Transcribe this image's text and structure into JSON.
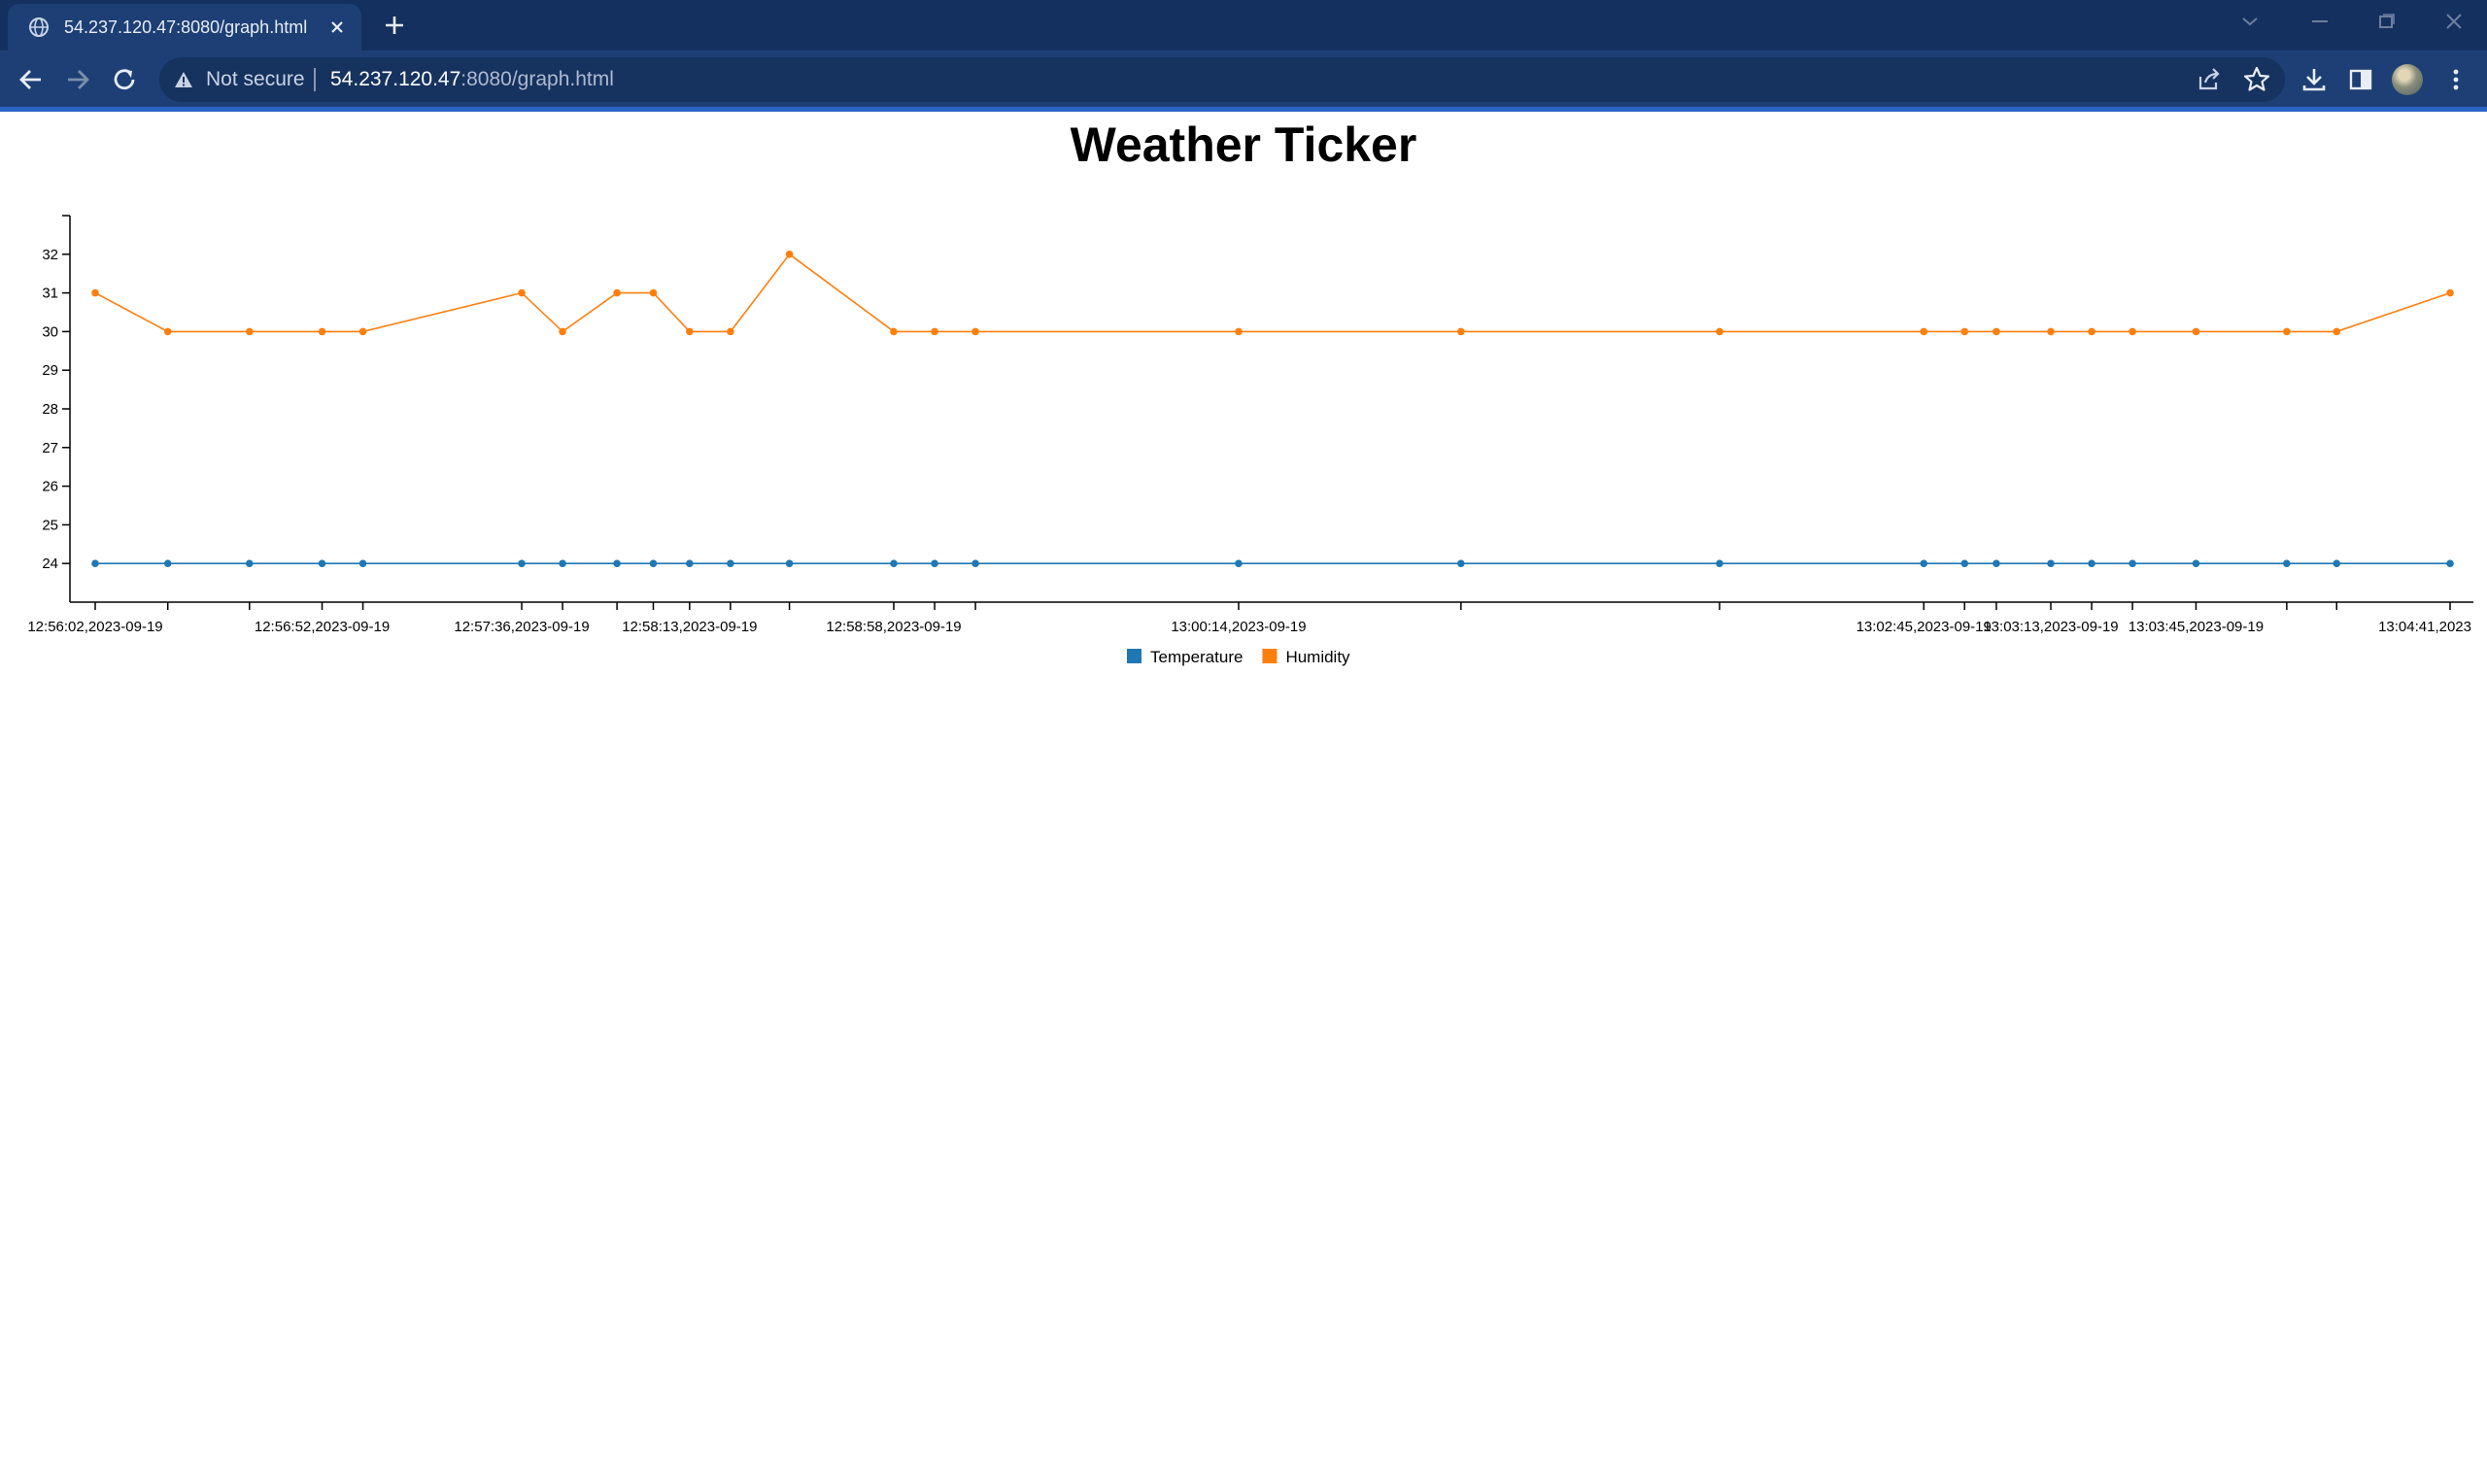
{
  "browser": {
    "tab_title": "54.237.120.47:8080/graph.html",
    "security_label": "Not secure",
    "url_host": "54.237.120.47",
    "url_path": ":8080/graph.html"
  },
  "page": {
    "title": "Weather Ticker"
  },
  "chart_data": {
    "type": "line",
    "title": "Weather Ticker",
    "xlabel": "",
    "ylabel": "",
    "ylim": [
      23,
      33
    ],
    "y_ticks": [
      24,
      25,
      26,
      27,
      28,
      29,
      30,
      31,
      32
    ],
    "x_axis": "time",
    "x_tick_labels": [
      "12:56:02,2023-09-19",
      "12:56:52,2023-09-19",
      "12:57:36,2023-09-19",
      "12:58:13,2023-09-19",
      "12:58:58,2023-09-19",
      "13:00:14,2023-09-19",
      "13:02:45,2023-09-19",
      "13:03:13,2023-09-19",
      "13:03:45,2023-09-19",
      "13:04:41,2023"
    ],
    "x": [
      "12:56:02,2023-09-19",
      "12:56:18,2023-09-19",
      "12:56:36,2023-09-19",
      "12:56:52,2023-09-19",
      "12:57:01,2023-09-19",
      "12:57:36,2023-09-19",
      "12:57:45,2023-09-19",
      "12:57:57,2023-09-19",
      "12:58:05,2023-09-19",
      "12:58:13,2023-09-19",
      "12:58:22,2023-09-19",
      "12:58:35,2023-09-19",
      "12:58:58,2023-09-19",
      "12:59:07,2023-09-19",
      "12:59:16,2023-09-19",
      "13:00:14,2023-09-19",
      "13:01:03,2023-09-19",
      "13:02:00,2023-09-19",
      "13:02:45,2023-09-19",
      "13:02:54,2023-09-19",
      "13:03:01,2023-09-19",
      "13:03:13,2023-09-19",
      "13:03:22,2023-09-19",
      "13:03:31,2023-09-19",
      "13:03:45,2023-09-19",
      "13:04:05,2023-09-19",
      "13:04:16,2023-09-19",
      "13:04:41,2023-09-19"
    ],
    "series": [
      {
        "name": "Temperature",
        "color": "#1f77b4",
        "values": [
          24,
          24,
          24,
          24,
          24,
          24,
          24,
          24,
          24,
          24,
          24,
          24,
          24,
          24,
          24,
          24,
          24,
          24,
          24,
          24,
          24,
          24,
          24,
          24,
          24,
          24,
          24,
          24
        ]
      },
      {
        "name": "Humidity",
        "color": "#ff7f0e",
        "values": [
          31,
          30,
          30,
          30,
          30,
          31,
          30,
          31,
          31,
          30,
          30,
          32,
          30,
          30,
          30,
          30,
          30,
          30,
          30,
          30,
          30,
          30,
          30,
          30,
          30,
          30,
          30,
          31
        ]
      }
    ],
    "grid": false,
    "legend": "bottom-center"
  }
}
